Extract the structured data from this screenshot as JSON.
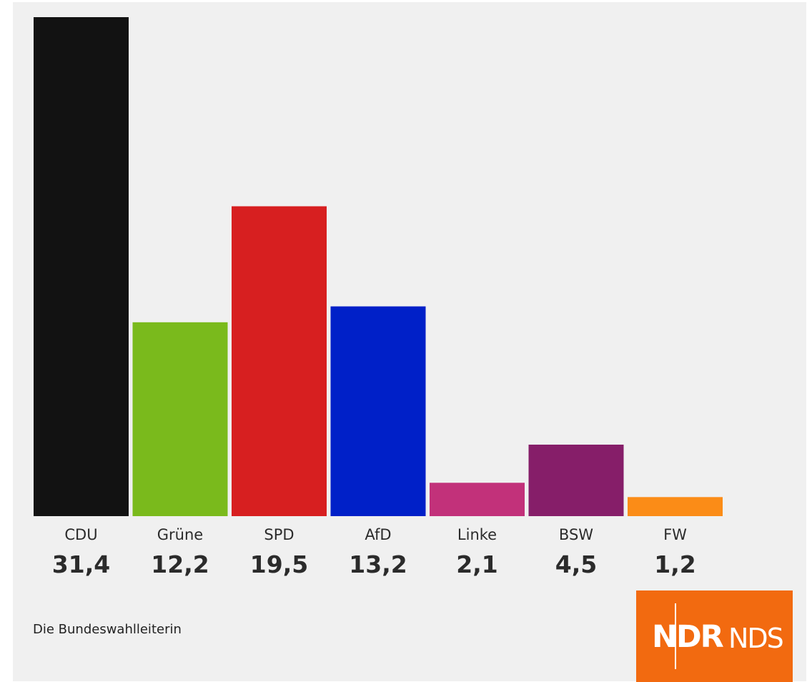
{
  "chart_data": {
    "type": "bar",
    "categories": [
      "CDU",
      "Grüne",
      "SPD",
      "AfD",
      "Linke",
      "BSW",
      "FW"
    ],
    "values": [
      31.4,
      12.2,
      19.5,
      13.2,
      2.1,
      4.5,
      1.2
    ],
    "value_labels": [
      "31,4",
      "12,2",
      "19,5",
      "13,2",
      "2,1",
      "4,5",
      "1,2"
    ],
    "colors": [
      "#121212",
      "#7aba1c",
      "#d71f20",
      "#0020c8",
      "#c2317a",
      "#861e69",
      "#fb8c17"
    ],
    "grid": false,
    "legend": "none"
  },
  "source": "Die Bundeswahlleiterin",
  "logo": {
    "brand": "NDR",
    "region": "NDS",
    "color": "#f26a10"
  }
}
